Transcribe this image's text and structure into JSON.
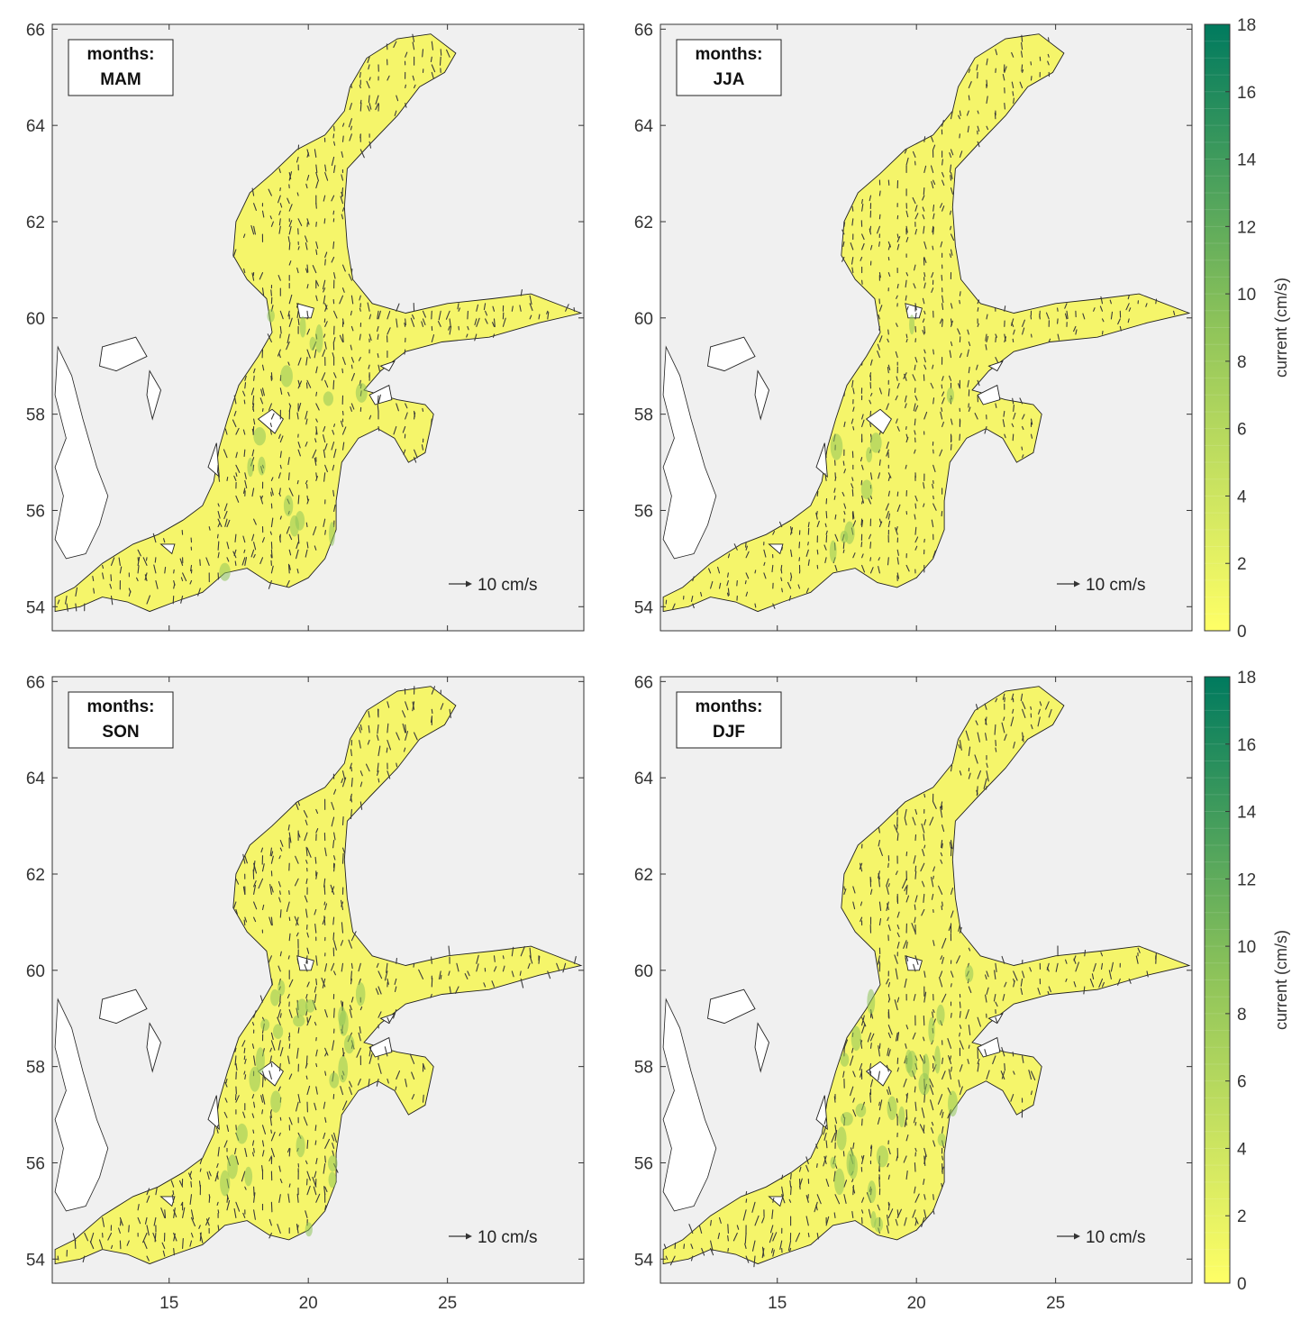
{
  "panels": [
    {
      "id": "mam",
      "label_line1": "months:",
      "label_line2": "MAM",
      "scale_label": "10 cm/s",
      "intensity": 0.65
    },
    {
      "id": "jja",
      "label_line1": "months:",
      "label_line2": "JJA",
      "scale_label": "10 cm/s",
      "intensity": 0.35
    },
    {
      "id": "son",
      "label_line1": "months:",
      "label_line2": "SON",
      "scale_label": "10 cm/s",
      "intensity": 0.9
    },
    {
      "id": "djf",
      "label_line1": "months:",
      "label_line2": "DJF",
      "scale_label": "10 cm/s",
      "intensity": 0.95
    }
  ],
  "axes": {
    "xlim": [
      10.8,
      29.9
    ],
    "ylim": [
      53.5,
      66.1
    ],
    "xticks": [
      15,
      20,
      25
    ],
    "xtick_labels": [
      "15",
      "20",
      "25"
    ],
    "yticks": [
      54,
      56,
      58,
      60,
      62,
      64,
      66
    ],
    "ytick_labels": [
      "54",
      "56",
      "58",
      "60",
      "62",
      "64",
      "66"
    ]
  },
  "colorbar": {
    "label": "current  (cm/s)",
    "range": [
      0,
      18
    ],
    "ticks": [
      0,
      2,
      4,
      6,
      8,
      10,
      12,
      14,
      16,
      18
    ],
    "tick_labels": [
      "0",
      "2",
      "4",
      "6",
      "8",
      "10",
      "12",
      "14",
      "16",
      "18"
    ],
    "color_low": "#ffff66",
    "color_mid": "#8fc45a",
    "color_high": "#007a5e"
  },
  "colors": {
    "land": "#f0f0f0",
    "water_background": "#ffffff",
    "sea_fill": "#f5f56a",
    "coastline": "#222222",
    "arrows": "#3a3a3a"
  }
}
